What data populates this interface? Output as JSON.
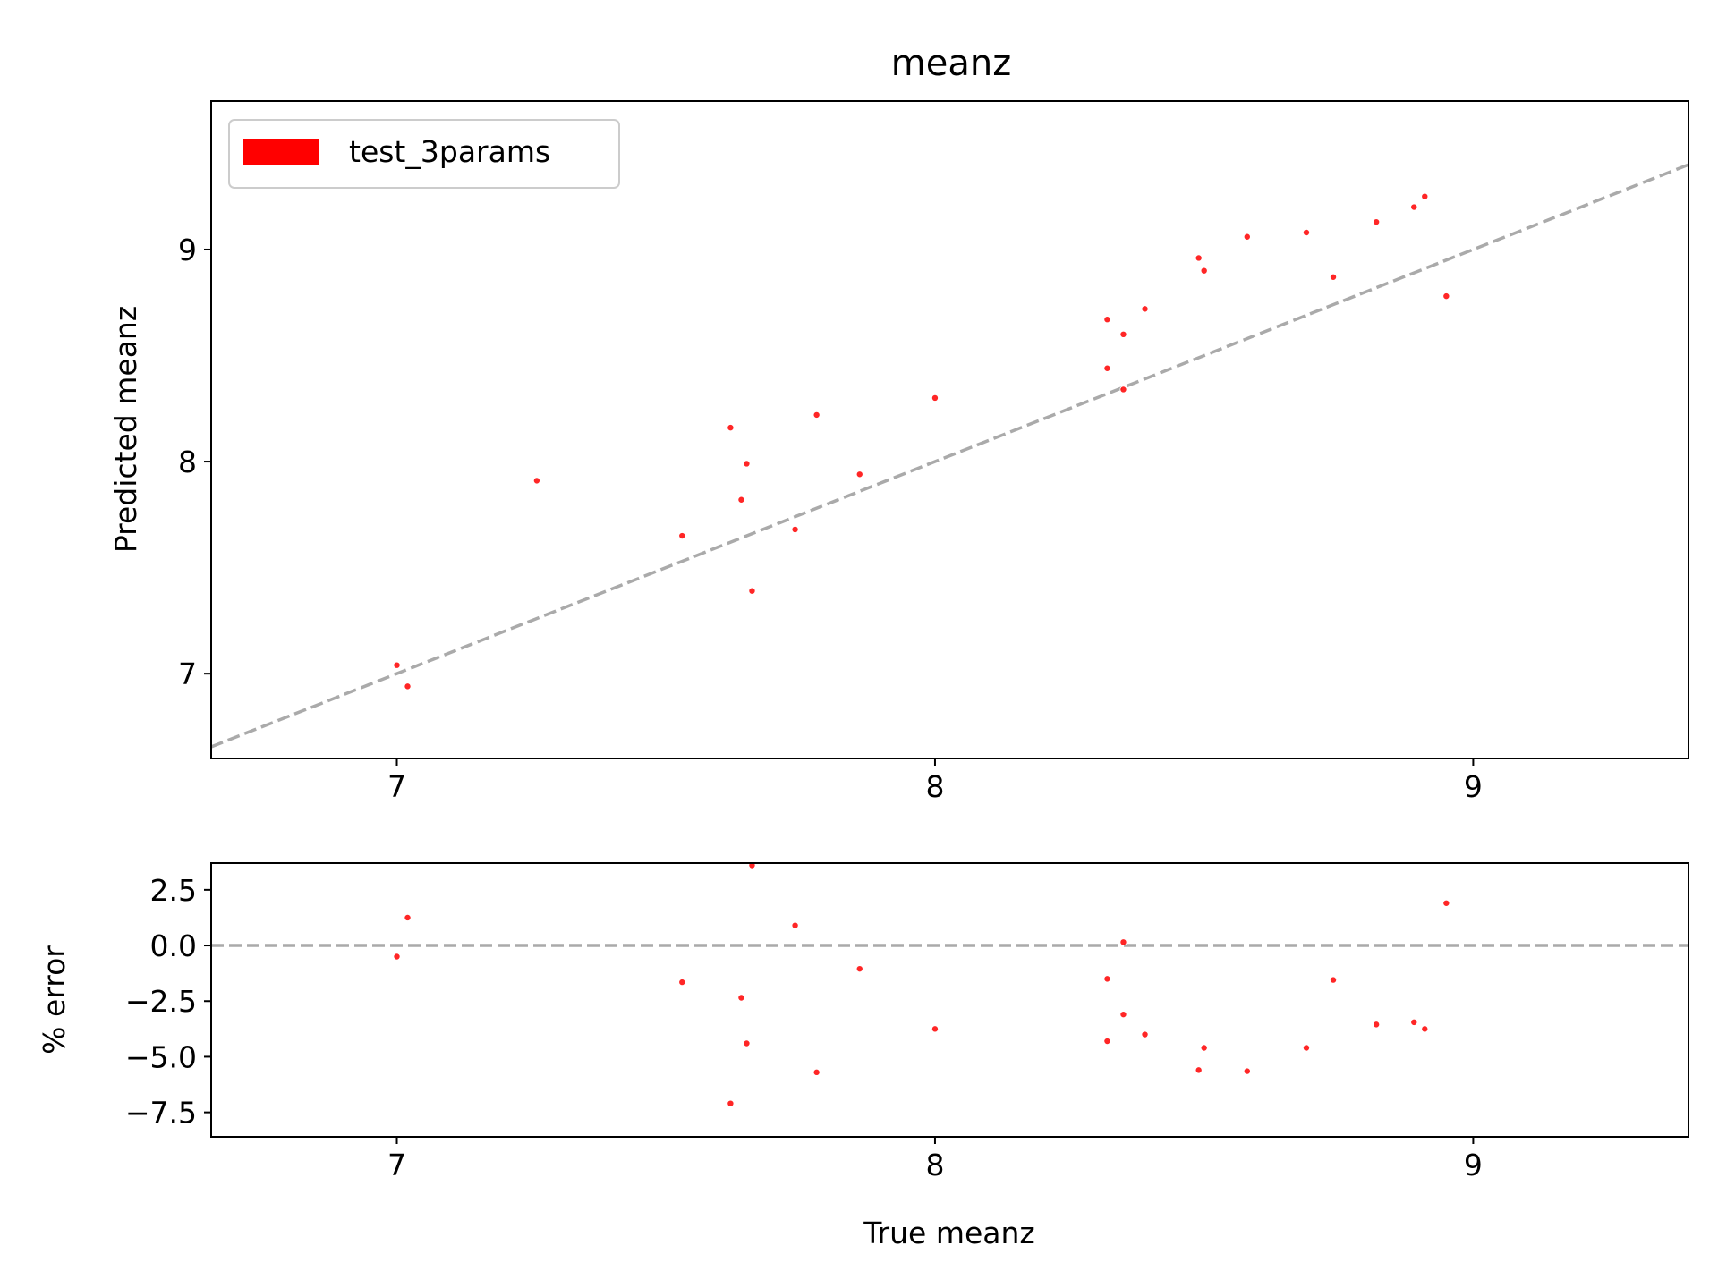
{
  "chart_data": [
    {
      "type": "scatter",
      "title": "meanz",
      "xlabel": "",
      "ylabel": "Predicted meanz",
      "xlim": [
        6.655,
        9.4
      ],
      "ylim": [
        6.6,
        9.7
      ],
      "xticks": [
        "7",
        "8",
        "9"
      ],
      "yticks": [
        "7",
        "8",
        "9"
      ],
      "legend": {
        "position": "top-left",
        "entries": [
          "test_3params"
        ]
      },
      "reference_line": {
        "style": "dashed",
        "color": "#aaaaaa",
        "slope": 1,
        "intercept": 0
      },
      "series": [
        {
          "name": "test_3params",
          "color": "#ff0000",
          "points": [
            [
              7.0,
              7.04
            ],
            [
              7.02,
              6.94
            ],
            [
              7.26,
              7.91
            ],
            [
              7.53,
              7.65
            ],
            [
              7.62,
              8.16
            ],
            [
              7.64,
              7.82
            ],
            [
              7.65,
              7.99
            ],
            [
              7.66,
              7.39
            ],
            [
              7.74,
              7.68
            ],
            [
              7.78,
              8.22
            ],
            [
              7.86,
              7.94
            ],
            [
              8.0,
              8.3
            ],
            [
              8.32,
              8.67
            ],
            [
              8.32,
              8.44
            ],
            [
              8.35,
              8.6
            ],
            [
              8.35,
              8.34
            ],
            [
              8.39,
              8.72
            ],
            [
              8.49,
              8.96
            ],
            [
              8.5,
              8.9
            ],
            [
              8.58,
              9.06
            ],
            [
              8.69,
              9.08
            ],
            [
              8.74,
              8.87
            ],
            [
              8.82,
              9.13
            ],
            [
              8.89,
              9.2
            ],
            [
              8.91,
              9.25
            ],
            [
              8.95,
              8.78
            ]
          ]
        }
      ]
    },
    {
      "type": "scatter",
      "title": "",
      "xlabel": "True meanz",
      "ylabel": "% error",
      "xlim": [
        6.655,
        9.4
      ],
      "ylim": [
        -8.6,
        3.7
      ],
      "xticks": [
        "7",
        "8",
        "9"
      ],
      "yticks": [
        "2.5",
        "0.0",
        "−2.5",
        "−5.0",
        "−7.5"
      ],
      "reference_line": {
        "style": "dashed",
        "color": "#aaaaaa",
        "y": 0
      },
      "series": [
        {
          "name": "test_3params",
          "color": "#ff0000",
          "points": [
            [
              7.0,
              -0.5
            ],
            [
              7.02,
              1.25
            ],
            [
              7.53,
              -1.65
            ],
            [
              7.62,
              -7.1
            ],
            [
              7.64,
              -2.35
            ],
            [
              7.65,
              -4.4
            ],
            [
              7.66,
              3.6
            ],
            [
              7.74,
              0.9
            ],
            [
              7.78,
              -5.7
            ],
            [
              7.86,
              -1.05
            ],
            [
              8.0,
              -3.75
            ],
            [
              8.32,
              -1.5
            ],
            [
              8.32,
              -4.3
            ],
            [
              8.35,
              -3.1
            ],
            [
              8.35,
              0.15
            ],
            [
              8.39,
              -4.0
            ],
            [
              8.49,
              -5.6
            ],
            [
              8.5,
              -4.6
            ],
            [
              8.58,
              -5.65
            ],
            [
              8.69,
              -4.6
            ],
            [
              8.74,
              -1.55
            ],
            [
              8.82,
              -3.55
            ],
            [
              8.89,
              -3.45
            ],
            [
              8.91,
              -3.75
            ],
            [
              8.95,
              1.9
            ]
          ]
        }
      ]
    }
  ]
}
